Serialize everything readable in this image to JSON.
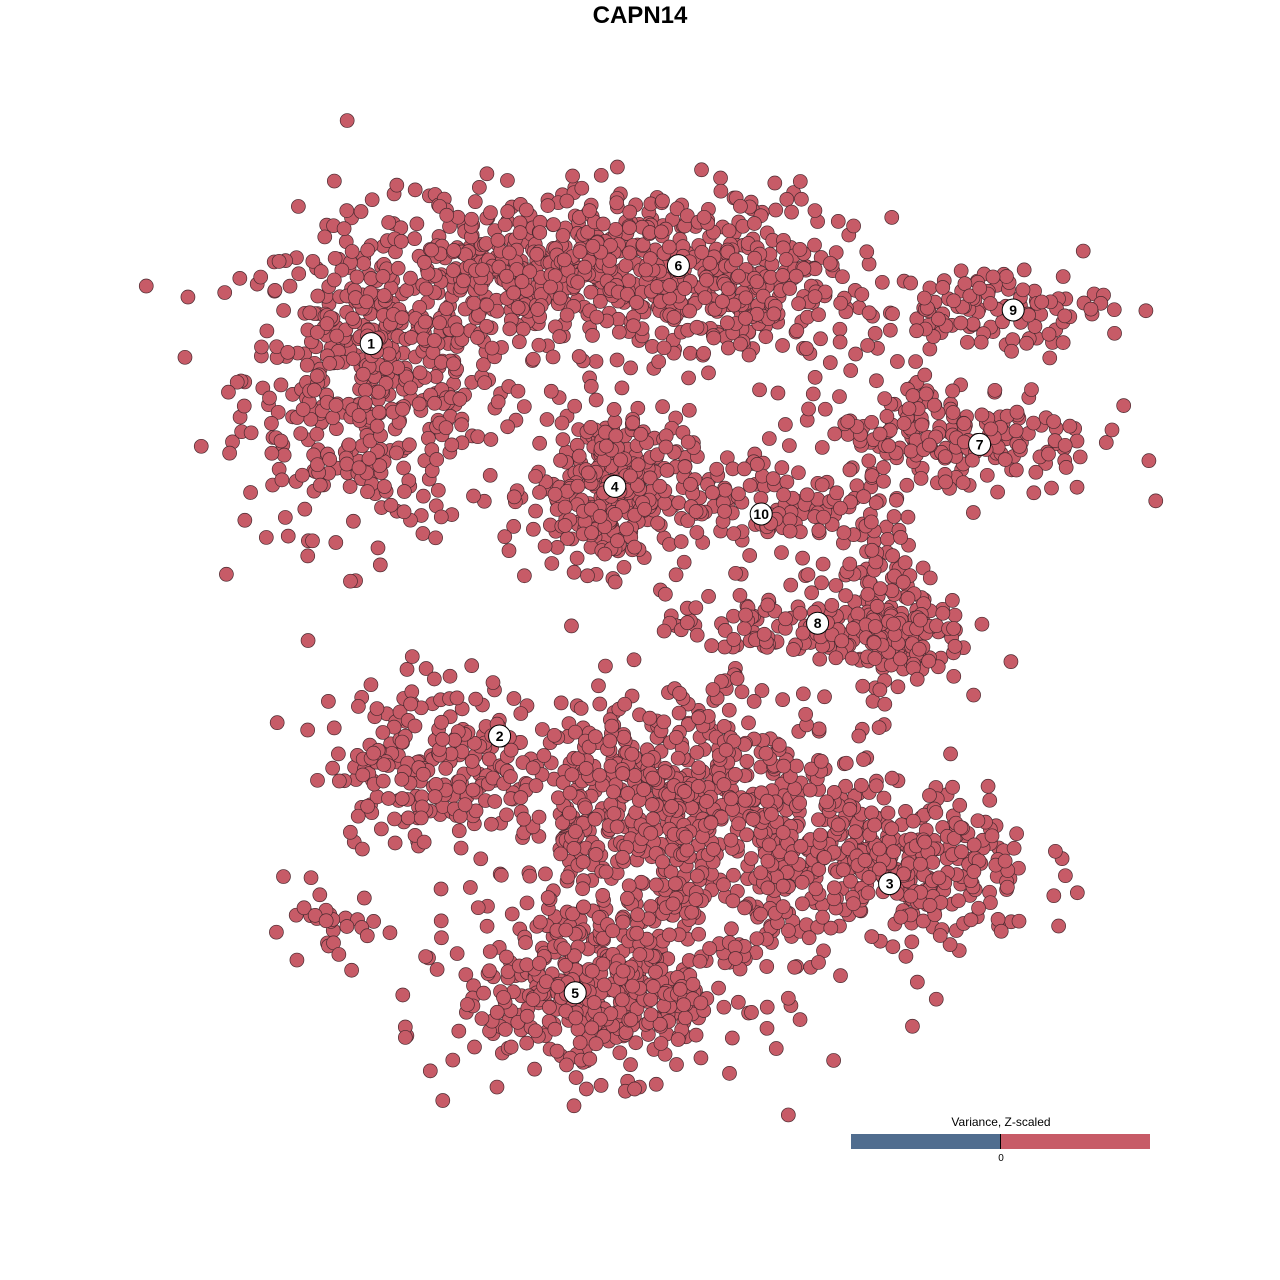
{
  "chart_data": {
    "type": "scatter",
    "title": "CAPN14",
    "xlabel": "",
    "ylabel": "",
    "axes_visible": false,
    "grid": false,
    "point_color": "#C75B67",
    "point_edge_color": "#4A2A30",
    "legend": {
      "title": "Variance, Z-scaled",
      "placement": "bottom-right",
      "colors": [
        "#506D8F",
        "#C75B67"
      ],
      "tick_label": "0"
    },
    "clusters": [
      {
        "label": "1",
        "center": [
          -22.4,
          24.7
        ],
        "regions": [
          {
            "c": [
              -22,
              22
            ],
            "sd": [
              5.5,
              6.5
            ],
            "n": 520
          },
          {
            "c": [
              -12,
              30
            ],
            "sd": [
              5,
              3
            ],
            "n": 180
          }
        ]
      },
      {
        "label": "6",
        "center": [
          3.2,
          31.2
        ],
        "regions": [
          {
            "c": [
              0,
              31
            ],
            "sd": [
              8,
              3.5
            ],
            "n": 480
          },
          {
            "c": [
              10,
              28
            ],
            "sd": [
              4,
              3
            ],
            "n": 120
          }
        ]
      },
      {
        "label": "4",
        "center": [
          -2.1,
          12.8
        ],
        "regions": [
          {
            "c": [
              -2.5,
              12.5
            ],
            "sd": [
              3.3,
              3.3
            ],
            "n": 320
          }
        ]
      },
      {
        "label": "10",
        "center": [
          10.1,
          10.5
        ],
        "regions": [
          {
            "c": [
              9.5,
              11.5
            ],
            "sd": [
              3,
              2.5
            ],
            "n": 90
          }
        ]
      },
      {
        "label": "7",
        "center": [
          28.3,
          16.3
        ],
        "regions": [
          {
            "c": [
              26,
              17
            ],
            "sd": [
              6,
              2.5
            ],
            "n": 220
          }
        ]
      },
      {
        "label": "9",
        "center": [
          31.1,
          27.5
        ],
        "regions": [
          {
            "c": [
              29,
              27.5
            ],
            "sd": [
              5,
              1.8
            ],
            "n": 120
          }
        ]
      },
      {
        "label": "8",
        "center": [
          14.8,
          1.4
        ],
        "regions": [
          {
            "c": [
              19,
              5
            ],
            "sd": [
              2.5,
              4
            ],
            "n": 120
          },
          {
            "c": [
              21,
              0
            ],
            "sd": [
              3,
              1.8
            ],
            "n": 120
          },
          {
            "c": [
              10,
              1
            ],
            "sd": [
              4,
              1.5
            ],
            "n": 80
          }
        ]
      },
      {
        "label": "2",
        "center": [
          -11.7,
          -8.0
        ],
        "regions": [
          {
            "c": [
              -17,
              -10
            ],
            "sd": [
              4.5,
              3.5
            ],
            "n": 230
          }
        ]
      },
      {
        "label": "3",
        "center": [
          20.8,
          -20.3
        ],
        "regions": [
          {
            "c": [
              21,
              -19
            ],
            "sd": [
              6,
              3.5
            ],
            "n": 380
          }
        ]
      },
      {
        "label": "5",
        "center": [
          -5.4,
          -29.4
        ],
        "regions": [
          {
            "c": [
              -3,
              -29
            ],
            "sd": [
              6,
              3.5
            ],
            "n": 480
          },
          {
            "c": [
              3,
              -14
            ],
            "sd": [
              7,
              5
            ],
            "n": 650
          },
          {
            "c": [
              -26,
              -24
            ],
            "sd": [
              2.5,
              1.5
            ],
            "n": 30
          }
        ]
      }
    ]
  }
}
